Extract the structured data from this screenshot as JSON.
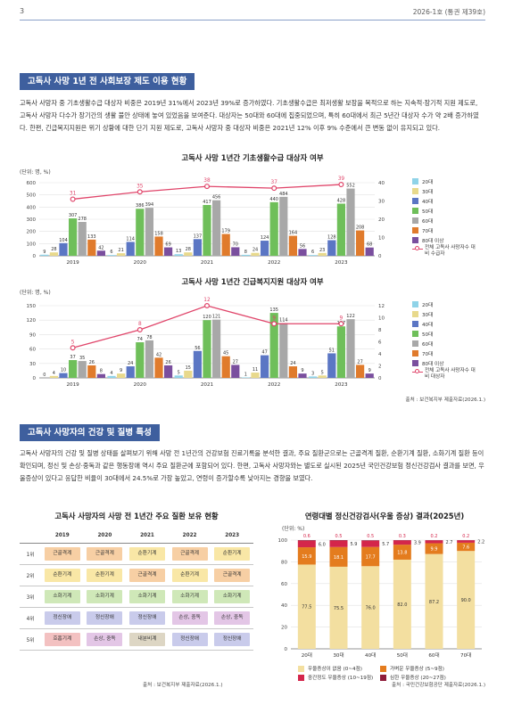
{
  "header": {
    "page_number": "3",
    "issue": "2026-1호 (통권 제39호)"
  },
  "section1": {
    "title": "고독사 사망 1년 전 사회보장 제도 이용 현황",
    "paragraph": "고독사 사망자 중 기초생활수급 대상자 비중은 2019년 31%에서 2023년 39%로 증가하였다. 기초생활수급은 최저생활 보장을 목적으로 하는 지속적·장기적 지원 제도로, 고독사 사망자 다수가 장기간의 생활 불안 상태에 놓여 있었음을 보여준다. 대상자는 50대와 60대에 집중되었으며, 특히 60대에서 최근 5년간 대상자 수가 약 2배 증가하였다. 한편, 긴급복지지원은 위기 상황에 대한 단기 지원 제도로, 고독사 사망자 중 대상자 비중은 2021년 12% 이후 9% 수준에서 큰 변동 없이 유지되고 있다."
  },
  "legend_age": [
    {
      "label": "20대",
      "color": "#8fd3e8"
    },
    {
      "label": "30대",
      "color": "#e8d98c"
    },
    {
      "label": "40대",
      "color": "#5b76c4"
    },
    {
      "label": "50대",
      "color": "#6fbf5a"
    },
    {
      "label": "60대",
      "color": "#a8a8a8"
    },
    {
      "label": "70대",
      "color": "#e07b2c"
    },
    {
      "label": "80대 이상",
      "color": "#7a4f9e"
    }
  ],
  "legend_line": "전체 고독사 사망자수 대비 수급자",
  "legend_line2": "전체 고독사 사망자수 대비 대상자",
  "chart_data": [
    {
      "type": "bar",
      "title": "고독사 사망 1년간 기초생활수급 대상자 여부",
      "unit_label": "(단위: 명, %)",
      "categories": [
        "2019",
        "2020",
        "2021",
        "2022",
        "2023"
      ],
      "ylim": [
        0,
        600
      ],
      "y2lim": [
        0,
        40
      ],
      "yticks": [
        "0",
        "100",
        "200",
        "300",
        "400",
        "500",
        "600"
      ],
      "y2ticks": [
        "0",
        "10",
        "20",
        "30",
        "40"
      ],
      "series": [
        {
          "name": "20대",
          "values": [
            9,
            6,
            13,
            8,
            6
          ]
        },
        {
          "name": "30대",
          "values": [
            28,
            21,
            28,
            24,
            23
          ]
        },
        {
          "name": "40대",
          "values": [
            104,
            114,
            137,
            124,
            128
          ]
        },
        {
          "name": "50대",
          "values": [
            307,
            386,
            417,
            440,
            428
          ]
        },
        {
          "name": "60대",
          "values": [
            278,
            394,
            456,
            484,
            552
          ]
        },
        {
          "name": "70대",
          "values": [
            133,
            158,
            179,
            164,
            208
          ]
        },
        {
          "name": "80대 이상",
          "values": [
            42,
            69,
            70,
            56,
            68
          ]
        }
      ],
      "line": {
        "name": "전체 고독사 사망자수 대비 수급자",
        "values": [
          31,
          35,
          38,
          37,
          39
        ]
      }
    },
    {
      "type": "bar",
      "title": "고독사 사망 1년간 긴급복지지원 대상자 여부",
      "unit_label": "(단위: 명, %)",
      "categories": [
        "2019",
        "2020",
        "2021",
        "2022",
        "2023"
      ],
      "ylim": [
        0,
        150
      ],
      "y2lim": [
        0,
        12
      ],
      "yticks": [
        "0",
        "30",
        "60",
        "90",
        "120",
        "150"
      ],
      "y2ticks": [
        "0",
        "2",
        "4",
        "6",
        "8",
        "10",
        "12"
      ],
      "series": [
        {
          "name": "20대",
          "values": [
            0,
            4,
            5,
            1,
            3
          ]
        },
        {
          "name": "30대",
          "values": [
            4,
            9,
            15,
            11,
            5
          ]
        },
        {
          "name": "40대",
          "values": [
            10,
            24,
            56,
            47,
            51
          ]
        },
        {
          "name": "50대",
          "values": [
            37,
            74,
            120,
            135,
            107
          ]
        },
        {
          "name": "60대",
          "values": [
            35,
            78,
            121,
            114,
            122
          ]
        },
        {
          "name": "70대",
          "values": [
            26,
            42,
            45,
            24,
            27
          ]
        },
        {
          "name": "80대 이상",
          "values": [
            8,
            26,
            27,
            9,
            9
          ]
        }
      ],
      "line": {
        "name": "전체 고독사 사망자수 대비 대상자",
        "values": [
          5,
          8,
          12,
          9,
          9
        ]
      }
    },
    {
      "type": "bar",
      "title": "연령대별 정신건강검사(우울 증상) 결과(2025년)",
      "unit_label": "(단위: %)",
      "categories": [
        "20대",
        "30대",
        "40대",
        "50대",
        "60대",
        "70대"
      ],
      "ylim": [
        0,
        100
      ],
      "yticks": [
        "0",
        "20",
        "40",
        "60",
        "80",
        "100"
      ],
      "series": [
        {
          "name": "우울증상이 없음 (0~4점)",
          "color": "#f3dfa0",
          "values": [
            77.5,
            75.5,
            76.0,
            82.0,
            87.2,
            90.0
          ]
        },
        {
          "name": "가벼운 우울증상 (5~9점)",
          "color": "#e47c1e",
          "values": [
            15.9,
            18.1,
            17.7,
            13.8,
            9.9,
            7.6
          ]
        },
        {
          "name": "중간정도 우울증상 (10~19점)",
          "color": "#d4264b",
          "values": [
            6.0,
            5.9,
            5.7,
            3.9,
            2.7,
            2.2
          ]
        },
        {
          "name": "심한 우울증상 (20~27점)",
          "color": "#8f1c3a",
          "values": [
            0.6,
            0.5,
            0.5,
            0.3,
            0.2,
            0.2
          ]
        }
      ]
    }
  ],
  "source1": "출처 : 보건복지부 제출자료(2026.1.)",
  "section2": {
    "title": "고독사 사망자의 건강 및 질병 특성",
    "paragraph": "고독사 사망자의 건강 및 질병 상태를 살펴보기 위해 사망 전 1년간의 건강보험 진료기록을 분석한 결과, 주요 질환군으로는 근골격계 질환, 순환기계 질환, 소화기계 질환 등이 확인되며, 정신 및 손상·중독과 같은 행동장애 역시 주요 질환군에 포함되어 있다. 한편, 고독사 사망자와는 별도로 실시된 2025년 국민건강보험 정신건강검사 결과를 보면, 우울증상이 있다고 응답한 비율이 30대에서 24.5%로 가장 높았고, 연령이 증가할수록 낮아지는 경향을 보였다."
  },
  "disease_table": {
    "title": "고독사 사망자의 사망 전 1년간 주요 질환 보유 현황",
    "years": [
      "2019",
      "2020",
      "2021",
      "2022",
      "2023"
    ],
    "ranks": [
      "1위",
      "2위",
      "3위",
      "4위",
      "5위"
    ],
    "rows": [
      [
        "근골격계",
        "근골격계",
        "순환기계",
        "근골격계",
        "순환기계"
      ],
      [
        "순환기계",
        "순환기계",
        "근골격계",
        "순환기계",
        "근골격계"
      ],
      [
        "소화기계",
        "소화기계",
        "소화기계",
        "소화기계",
        "소화기계"
      ],
      [
        "정신장애",
        "정신장애",
        "정신장애",
        "손상, 중독",
        "손상, 중독"
      ],
      [
        "호흡기계",
        "손상, 중독",
        "내분비계",
        "정신장애",
        "정신장애"
      ]
    ],
    "colors": {
      "근골격계": "#f7cfa4",
      "순환기계": "#f9e7a6",
      "소화기계": "#cfe8b8",
      "정신장애": "#c9cbeb",
      "손상, 중독": "#e3c6e6",
      "호흡기계": "#f3c1c1",
      "내분비계": "#ddd6c4"
    }
  },
  "source_table": "출처 : 보건복지부 제출자료(2026.1.)",
  "source_depression": "출처 : 국민건강보험공단 제출자료(2026.1.)"
}
